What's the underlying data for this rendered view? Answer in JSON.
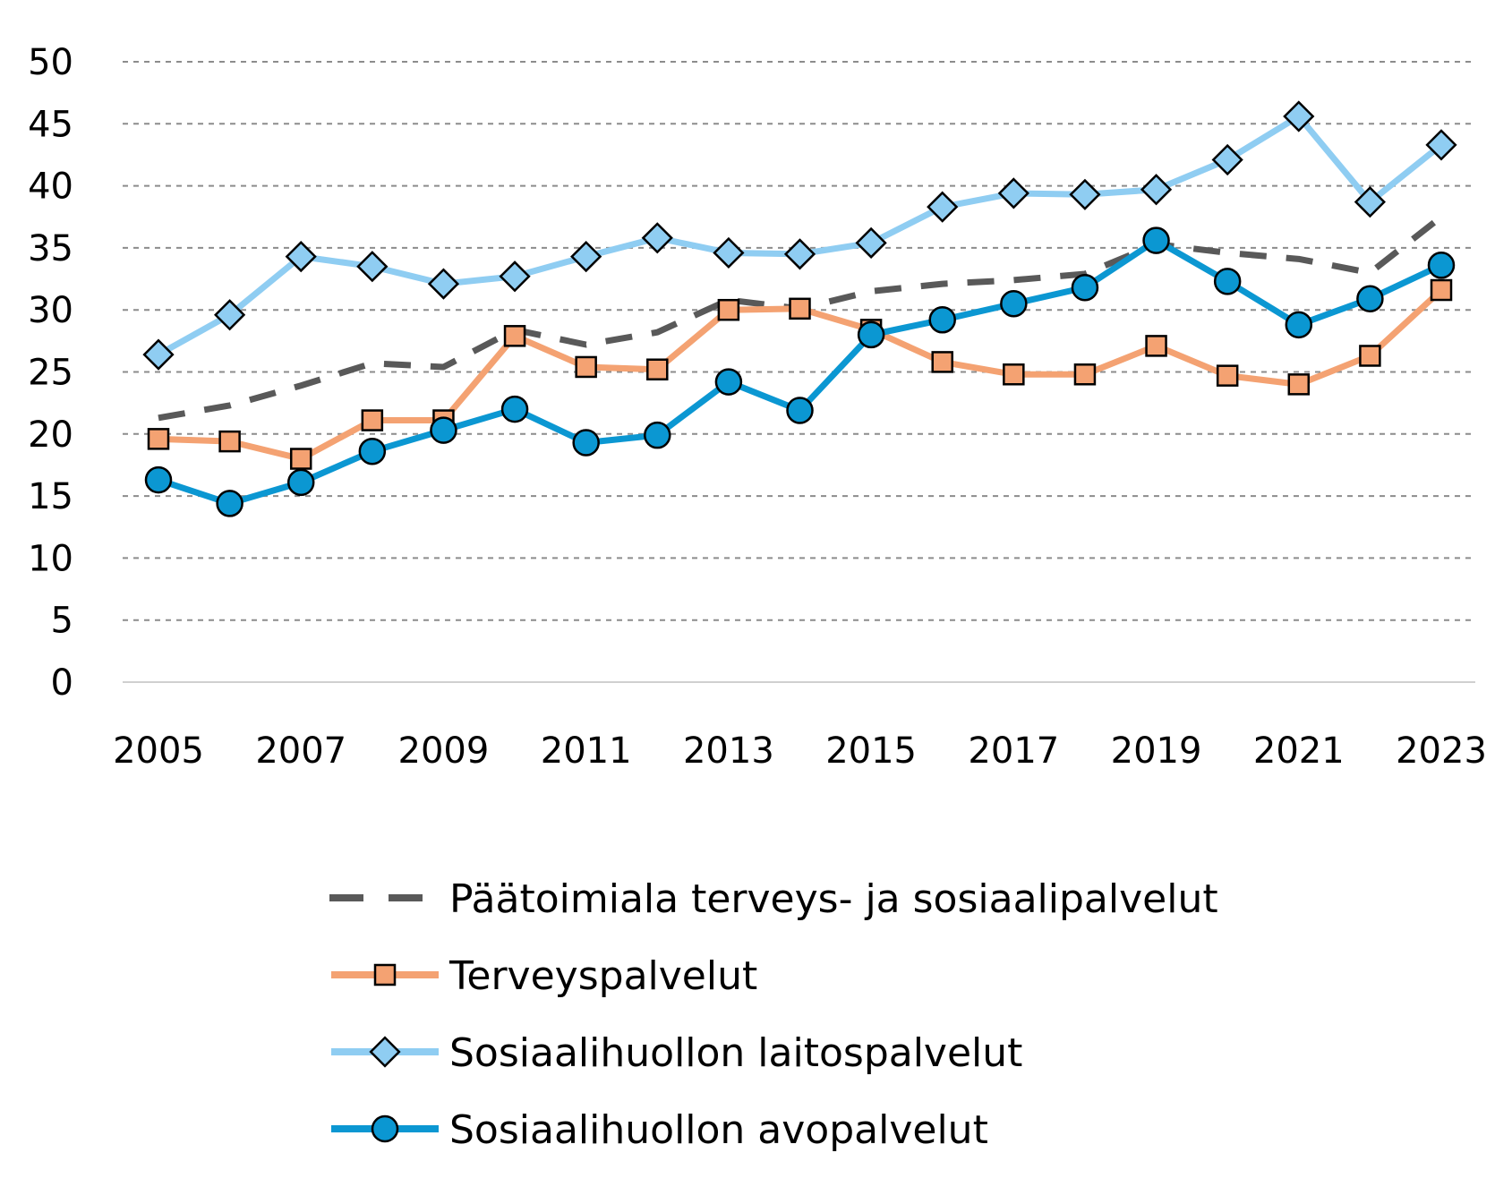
{
  "chart_data": {
    "type": "line",
    "x": [
      2005,
      2006,
      2007,
      2008,
      2009,
      2010,
      2011,
      2012,
      2013,
      2014,
      2015,
      2016,
      2017,
      2018,
      2019,
      2020,
      2021,
      2022,
      2023
    ],
    "x_tick_labels": [
      "2005",
      "2007",
      "2009",
      "2011",
      "2013",
      "2015",
      "2017",
      "2019",
      "2021",
      "2023"
    ],
    "y_tick_labels": [
      "0",
      "5",
      "10",
      "15",
      "20",
      "25",
      "30",
      "35",
      "40",
      "45",
      "50"
    ],
    "ylim": [
      0,
      50
    ],
    "grid": "horizontal dashed",
    "legend_position": "bottom",
    "series": [
      {
        "name": "Päätoimiala terveys- ja sosiaalipalvelut",
        "style": "dashed",
        "marker": "none",
        "color": "#595959",
        "values": [
          21.3,
          22.3,
          23.9,
          25.7,
          25.4,
          28.4,
          27.2,
          28.2,
          30.8,
          30.1,
          31.5,
          32.1,
          32.4,
          32.9,
          35.3,
          34.6,
          34.1,
          33.0,
          37.5
        ]
      },
      {
        "name": "Terveyspalvelut",
        "style": "solid",
        "marker": "square",
        "color": "#F4A272",
        "values": [
          19.6,
          19.4,
          18.0,
          21.1,
          21.1,
          27.9,
          25.4,
          25.2,
          30.0,
          30.1,
          28.4,
          25.8,
          24.8,
          24.8,
          27.1,
          24.7,
          24.0,
          26.3,
          31.6
        ]
      },
      {
        "name": "Sosiaalihuollon laitospalvelut",
        "style": "solid",
        "marker": "diamond",
        "color": "#8FCDF2",
        "values": [
          26.4,
          29.6,
          34.3,
          33.5,
          32.1,
          32.7,
          34.3,
          35.8,
          34.6,
          34.5,
          35.4,
          38.3,
          39.4,
          39.3,
          39.7,
          42.1,
          45.6,
          38.7,
          43.3
        ]
      },
      {
        "name": "Sosiaalihuollon avopalvelut",
        "style": "solid",
        "marker": "circle",
        "color": "#0B97D2",
        "values": [
          16.3,
          14.4,
          16.1,
          18.6,
          20.3,
          22.0,
          19.3,
          19.9,
          24.2,
          21.9,
          28.0,
          29.2,
          30.5,
          31.8,
          35.6,
          32.3,
          28.8,
          30.9,
          33.6
        ]
      }
    ]
  }
}
